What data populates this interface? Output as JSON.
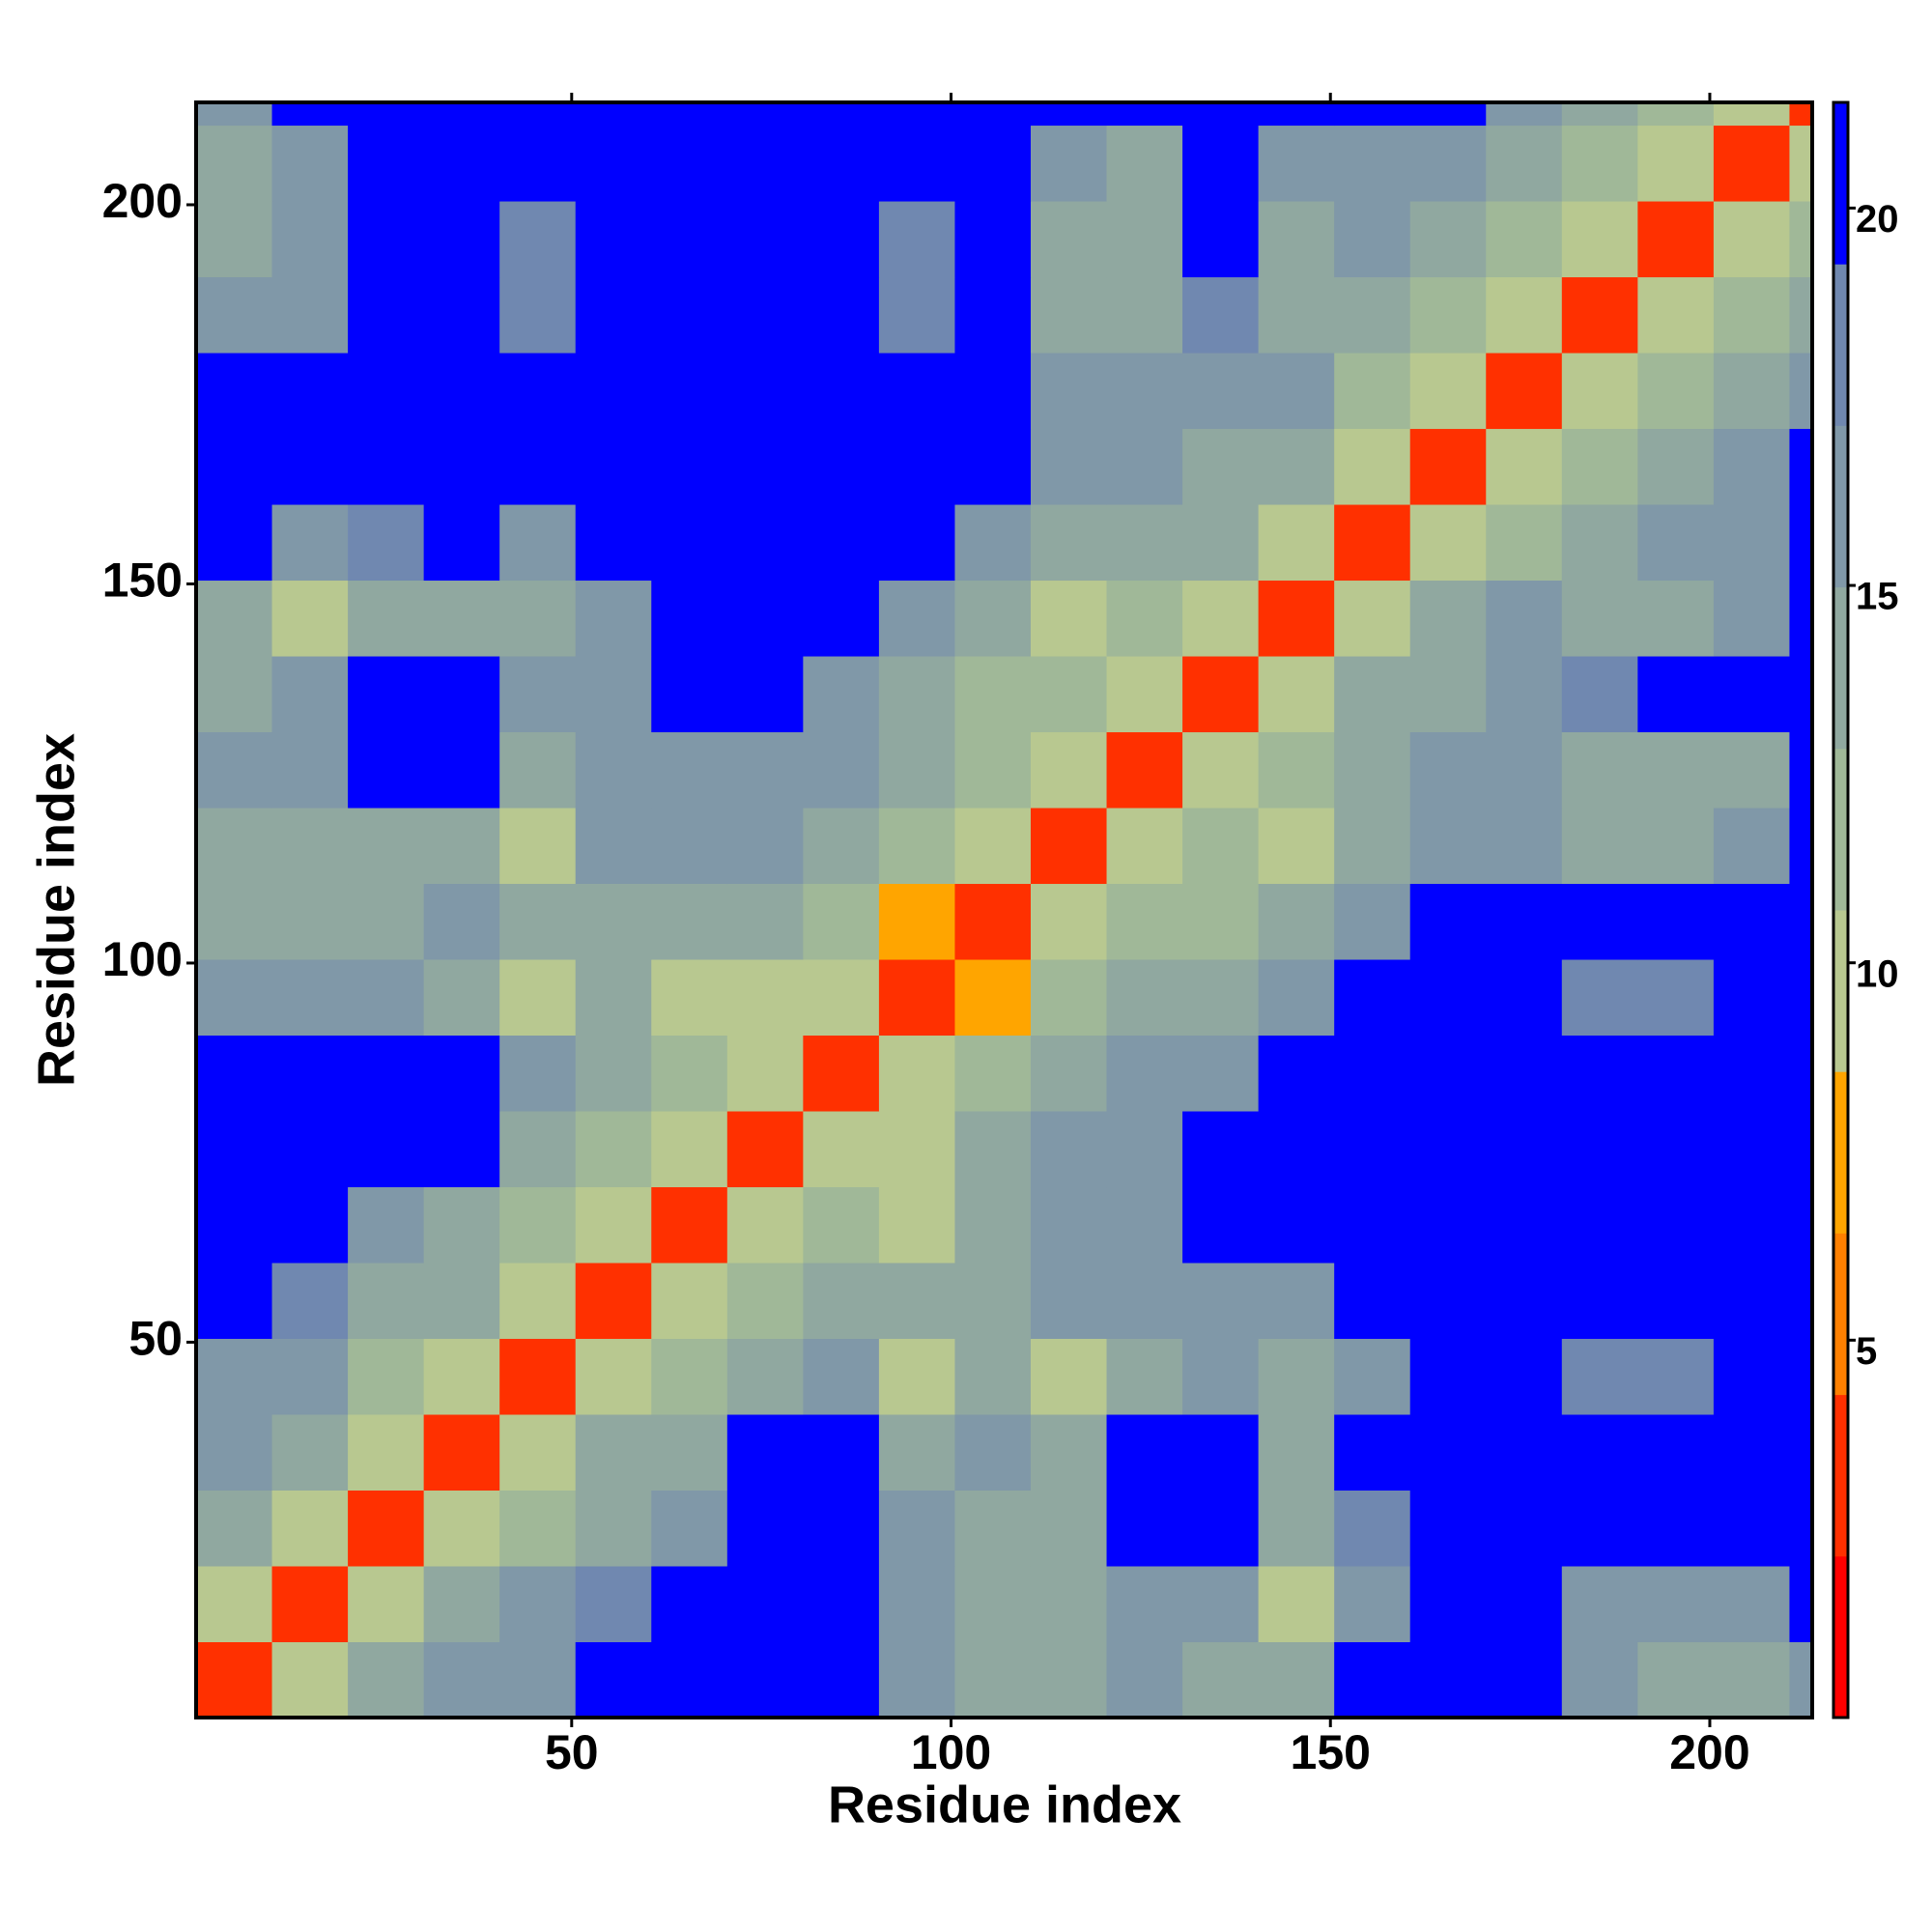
{
  "chart_data": {
    "type": "heatmap",
    "x_label": "Residue index",
    "y_label": "Residue index",
    "x_bins": [
      0.5,
      10.5,
      20.5,
      30.5,
      40.5,
      50.5,
      60.5,
      70.5,
      80.5,
      90.5,
      100.5,
      110.5,
      120.5,
      130.5,
      140.5,
      150.5,
      160.5,
      170.5,
      180.5,
      190.5,
      200.5,
      210.5,
      213.5
    ],
    "y_bins": [
      0.5,
      10.5,
      20.5,
      30.5,
      40.5,
      50.5,
      60.5,
      70.5,
      80.5,
      90.5,
      100.5,
      110.5,
      120.5,
      130.5,
      140.5,
      150.5,
      160.5,
      170.5,
      180.5,
      190.5,
      200.5,
      210.5,
      213.5
    ],
    "xlim": [
      0.5,
      213.5
    ],
    "ylim": [
      0.5,
      213.5
    ],
    "xticks": [
      50,
      100,
      150,
      200
    ],
    "yticks": [
      50,
      100,
      150,
      200
    ],
    "zlim": [
      0,
      21.4
    ],
    "zticks": [
      5,
      10,
      15,
      20
    ],
    "colors": [
      "#ff0000",
      "#ff3000",
      "#ff8000",
      "#ffa500",
      "#b8c890",
      "#a0b898",
      "#90a8a0",
      "#8098a8",
      "#7088b0",
      "#0000ff"
    ],
    "values": [
      [
        4,
        9,
        13,
        16,
        15,
        21,
        21,
        21,
        21,
        17,
        14,
        14,
        15,
        14,
        13,
        21,
        21,
        21,
        15,
        13,
        14,
        16
      ],
      [
        9,
        4,
        9,
        13,
        15,
        18,
        21,
        21,
        21,
        15,
        13,
        13,
        17,
        15,
        10,
        17,
        21,
        21,
        16,
        15,
        17,
        21
      ],
      [
        13,
        9,
        4,
        9,
        12,
        14,
        15,
        21,
        21,
        15,
        14,
        13,
        21,
        21,
        14,
        18,
        21,
        21,
        21,
        21,
        21,
        21
      ],
      [
        16,
        13,
        9,
        4,
        9,
        13,
        14,
        21,
        21,
        14,
        15,
        13,
        21,
        21,
        14,
        21,
        21,
        21,
        21,
        21,
        21,
        21
      ],
      [
        15,
        15,
        12,
        9,
        4,
        9,
        12,
        14,
        15,
        9,
        13,
        9,
        14,
        15,
        13,
        17,
        21,
        21,
        18,
        18,
        21,
        21
      ],
      [
        21,
        18,
        14,
        13,
        9,
        4,
        9,
        12,
        13,
        14,
        14,
        15,
        16,
        17,
        15,
        21,
        21,
        21,
        21,
        21,
        21,
        21
      ],
      [
        21,
        21,
        15,
        14,
        12,
        9,
        4,
        9,
        12,
        10,
        14,
        17,
        16,
        21,
        21,
        21,
        21,
        21,
        21,
        21,
        21,
        21
      ],
      [
        21,
        21,
        21,
        21,
        14,
        12,
        9,
        4,
        9,
        10,
        13,
        15,
        17,
        21,
        21,
        21,
        21,
        21,
        21,
        21,
        21,
        21
      ],
      [
        21,
        21,
        21,
        21,
        15,
        13,
        12,
        9,
        4,
        9,
        12,
        13,
        15,
        17,
        21,
        21,
        21,
        21,
        21,
        21,
        21,
        21
      ],
      [
        17,
        15,
        15,
        14,
        9,
        14,
        10,
        10,
        9,
        4,
        8,
        12,
        13,
        14,
        16,
        21,
        21,
        21,
        19,
        18,
        21,
        21
      ],
      [
        14,
        13,
        14,
        15,
        13,
        14,
        14,
        13,
        12,
        8,
        4,
        9,
        12,
        12,
        14,
        17,
        21,
        21,
        21,
        21,
        21,
        21
      ],
      [
        14,
        13,
        13,
        13,
        9,
        15,
        17,
        15,
        13,
        12,
        9,
        4,
        9,
        11,
        10,
        14,
        16,
        15,
        13,
        14,
        15,
        21
      ],
      [
        15,
        17,
        21,
        21,
        14,
        16,
        16,
        17,
        15,
        13,
        12,
        9,
        4,
        9,
        11,
        13,
        15,
        15,
        13,
        13,
        14,
        21
      ],
      [
        14,
        15,
        21,
        21,
        15,
        17,
        21,
        21,
        17,
        14,
        12,
        11,
        9,
        4,
        9,
        13,
        14,
        17,
        18,
        21,
        21,
        21
      ],
      [
        13,
        10,
        14,
        14,
        13,
        15,
        21,
        21,
        21,
        16,
        14,
        10,
        11,
        9,
        4,
        9,
        13,
        15,
        13,
        14,
        17,
        21
      ],
      [
        21,
        17,
        18,
        21,
        17,
        21,
        21,
        21,
        21,
        21,
        17,
        14,
        13,
        13,
        9,
        4,
        9,
        12,
        13,
        15,
        16,
        21
      ],
      [
        21,
        21,
        21,
        21,
        21,
        21,
        21,
        21,
        21,
        21,
        21,
        16,
        15,
        14,
        13,
        9,
        4,
        9,
        11,
        14,
        16,
        21
      ],
      [
        21,
        21,
        21,
        21,
        21,
        21,
        21,
        21,
        21,
        21,
        21,
        15,
        15,
        17,
        15,
        12,
        9,
        4,
        9,
        12,
        14,
        16
      ],
      [
        15,
        16,
        21,
        21,
        18,
        21,
        21,
        21,
        21,
        19,
        21,
        13,
        13,
        18,
        13,
        13,
        11,
        9,
        4,
        9,
        12,
        14
      ],
      [
        13,
        15,
        21,
        21,
        18,
        21,
        21,
        21,
        21,
        18,
        21,
        14,
        13,
        21,
        14,
        15,
        14,
        12,
        9,
        4,
        9,
        12
      ],
      [
        14,
        17,
        21,
        21,
        21,
        21,
        21,
        21,
        21,
        21,
        21,
        15,
        14,
        21,
        17,
        16,
        16,
        14,
        12,
        9,
        4,
        9
      ],
      [
        16,
        21,
        21,
        21,
        21,
        21,
        21,
        21,
        21,
        21,
        21,
        21,
        21,
        21,
        21,
        21,
        21,
        16,
        14,
        12,
        9,
        4
      ]
    ]
  }
}
